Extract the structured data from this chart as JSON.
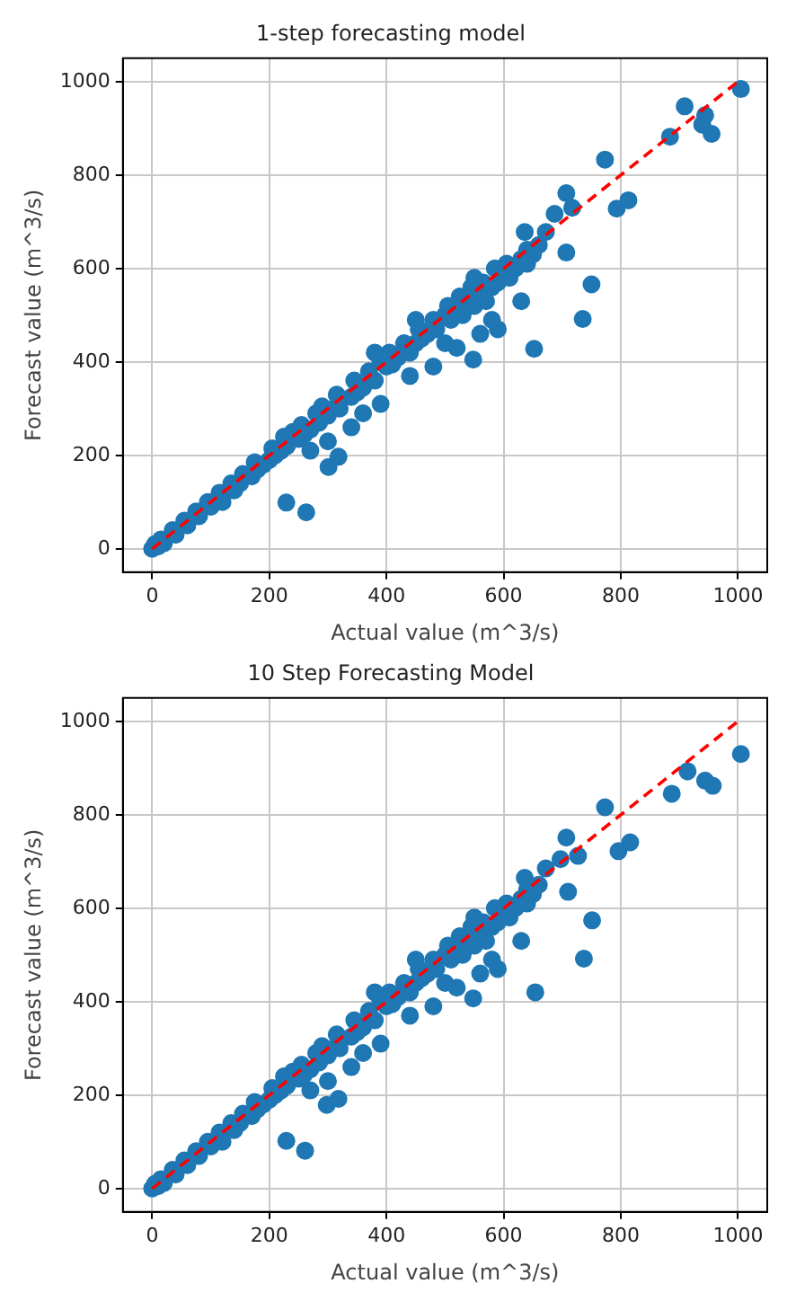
{
  "chart_data": [
    {
      "type": "scatter",
      "title": "1-step forecasting model",
      "xlabel": "Actual value (m^3/s)",
      "ylabel": "Forecast value (m^3/s)",
      "xlim": [
        -50,
        1050
      ],
      "ylim": [
        -50,
        1050
      ],
      "xticks": [
        0,
        200,
        400,
        600,
        800,
        1000
      ],
      "yticks": [
        0,
        200,
        400,
        600,
        800,
        1000
      ],
      "grid": true,
      "marker": "circle",
      "series": [
        {
          "type": "scatter",
          "color": "#1f77b4",
          "x": [
            0,
            5,
            10,
            15,
            20,
            35,
            40,
            55,
            60,
            75,
            80,
            95,
            100,
            115,
            120,
            135,
            140,
            150,
            155,
            170,
            175,
            180,
            190,
            200,
            205,
            210,
            220,
            225,
            230,
            240,
            250,
            255,
            260,
            270,
            280,
            285,
            290,
            300,
            310,
            315,
            320,
            340,
            345,
            350,
            360,
            370,
            380,
            390,
            400,
            405,
            410,
            420,
            430,
            440,
            450,
            455,
            460,
            470,
            480,
            485,
            500,
            505,
            510,
            520,
            525,
            530,
            540,
            545,
            550,
            560,
            565,
            570,
            580,
            585,
            590,
            605,
            610,
            620,
            630,
            640,
            650,
            660,
            270,
            300,
            340,
            360,
            390,
            440,
            480,
            520,
            560,
            590,
            500,
            580,
            630,
            640,
            380,
            450,
            550,
            1005,
            909,
            884,
            944,
            939,
            955,
            773,
            793,
            813,
            707,
            707,
            750,
            735,
            652,
            548,
            229,
            263,
            318,
            301,
            636,
            672,
            687,
            717
          ],
          "values": [
            0,
            10,
            5,
            20,
            12,
            40,
            30,
            60,
            50,
            80,
            70,
            100,
            90,
            120,
            100,
            140,
            125,
            140,
            160,
            155,
            185,
            170,
            180,
            190,
            215,
            200,
            210,
            240,
            220,
            250,
            235,
            265,
            245,
            255,
            290,
            270,
            305,
            285,
            300,
            330,
            300,
            325,
            360,
            335,
            345,
            380,
            360,
            400,
            390,
            420,
            395,
            410,
            440,
            420,
            440,
            470,
            450,
            460,
            490,
            470,
            500,
            520,
            490,
            510,
            540,
            500,
            530,
            560,
            520,
            540,
            570,
            530,
            560,
            600,
            570,
            610,
            580,
            600,
            620,
            640,
            630,
            650,
            210,
            230,
            260,
            290,
            310,
            370,
            390,
            430,
            460,
            470,
            440,
            490,
            530,
            610,
            420,
            490,
            580,
            984,
            947,
            882,
            928,
            908,
            888,
            833,
            728,
            746,
            761,
            634,
            566,
            492,
            428,
            405,
            99,
            78,
            197,
            175,
            678,
            678,
            717,
            730
          ]
        },
        {
          "type": "line",
          "color": "#ff0000",
          "line_style": "dashed",
          "marker": "none",
          "x": [
            0,
            1000
          ],
          "values": [
            0,
            1000
          ]
        }
      ]
    },
    {
      "type": "scatter",
      "title": "10 Step Forecasting Model",
      "xlabel": "Actual value (m^3/s)",
      "ylabel": "Forecast value (m^3/s)",
      "xlim": [
        -50,
        1050
      ],
      "ylim": [
        -50,
        1050
      ],
      "xticks": [
        0,
        200,
        400,
        600,
        800,
        1000
      ],
      "yticks": [
        0,
        200,
        400,
        600,
        800,
        1000
      ],
      "grid": true,
      "marker": "circle",
      "series": [
        {
          "type": "scatter",
          "color": "#1f77b4",
          "x": [
            0,
            5,
            10,
            15,
            20,
            35,
            40,
            55,
            60,
            75,
            80,
            95,
            100,
            115,
            120,
            135,
            140,
            150,
            155,
            170,
            175,
            180,
            190,
            200,
            205,
            210,
            220,
            225,
            230,
            240,
            250,
            255,
            260,
            270,
            280,
            285,
            290,
            300,
            310,
            315,
            320,
            340,
            345,
            350,
            360,
            370,
            380,
            390,
            400,
            405,
            410,
            420,
            430,
            440,
            450,
            455,
            460,
            470,
            480,
            485,
            500,
            505,
            510,
            520,
            525,
            530,
            540,
            545,
            550,
            560,
            565,
            570,
            580,
            585,
            590,
            605,
            610,
            620,
            630,
            640,
            650,
            660,
            270,
            300,
            340,
            360,
            390,
            440,
            480,
            520,
            560,
            590,
            500,
            580,
            630,
            640,
            380,
            450,
            550,
            1005,
            914,
            887,
            944,
            957,
            773,
            796,
            816,
            707,
            710,
            751,
            737,
            654,
            548,
            229,
            261,
            318,
            298,
            636,
            672,
            697,
            727
          ],
          "values": [
            0,
            10,
            5,
            20,
            12,
            40,
            30,
            60,
            50,
            80,
            70,
            100,
            90,
            120,
            100,
            140,
            125,
            140,
            160,
            155,
            185,
            170,
            180,
            190,
            215,
            200,
            210,
            240,
            220,
            250,
            235,
            265,
            245,
            255,
            290,
            270,
            305,
            285,
            300,
            330,
            300,
            325,
            360,
            335,
            345,
            380,
            360,
            400,
            390,
            420,
            395,
            410,
            440,
            420,
            440,
            470,
            450,
            460,
            490,
            470,
            500,
            520,
            490,
            510,
            540,
            500,
            530,
            560,
            520,
            540,
            570,
            530,
            560,
            600,
            570,
            610,
            580,
            600,
            620,
            640,
            630,
            650,
            210,
            230,
            260,
            290,
            310,
            370,
            390,
            430,
            460,
            470,
            440,
            490,
            530,
            610,
            420,
            490,
            580,
            930,
            893,
            845,
            873,
            862,
            816,
            722,
            741,
            751,
            635,
            574,
            492,
            420,
            407,
            102,
            81,
            192,
            179,
            665,
            685,
            705,
            712
          ]
        },
        {
          "type": "line",
          "color": "#ff0000",
          "line_style": "dashed",
          "marker": "none",
          "x": [
            0,
            1000
          ],
          "values": [
            0,
            1000
          ]
        }
      ]
    }
  ]
}
